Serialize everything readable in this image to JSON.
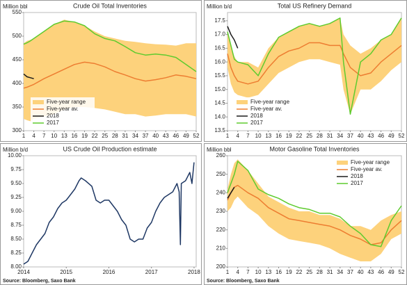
{
  "chart_data": [
    {
      "type": "line",
      "title": "Crude Oil Total Inventories",
      "ylabel": "Million bbl",
      "x": [
        1,
        2,
        3,
        4,
        7,
        10,
        13,
        16,
        19,
        22,
        25,
        28,
        31,
        34,
        37,
        40,
        43,
        46,
        49,
        52
      ],
      "xlim": [
        1,
        52
      ],
      "xticks": [
        1,
        4,
        7,
        10,
        13,
        16,
        19,
        22,
        25,
        28,
        31,
        34,
        37,
        40,
        43,
        46,
        49,
        52
      ],
      "ylim": [
        300,
        550
      ],
      "yticks": [
        300,
        350,
        400,
        450,
        500,
        550
      ],
      "grid": false,
      "legend": "lower-left",
      "series": [
        {
          "name": "Five-year range",
          "color": "#fdd27c",
          "high": [
            485,
            490,
            492,
            495,
            510,
            525,
            535,
            530,
            522,
            510,
            500,
            495,
            490,
            488,
            485,
            483,
            482,
            480,
            485,
            485
          ],
          "low": [
            325,
            322,
            320,
            325,
            330,
            335,
            345,
            350,
            350,
            348,
            345,
            340,
            335,
            335,
            330,
            332,
            335,
            335,
            335,
            330
          ]
        },
        {
          "name": "Five-year av.",
          "color": "#ed7d31",
          "values": [
            390,
            392,
            395,
            398,
            410,
            420,
            430,
            440,
            445,
            442,
            435,
            425,
            418,
            410,
            405,
            408,
            412,
            418,
            415,
            410
          ]
        },
        {
          "name": "2018",
          "color": "#1a1a1a",
          "values": [
            420,
            414,
            412,
            410,
            null,
            null,
            null,
            null,
            null,
            null,
            null,
            null,
            null,
            null,
            null,
            null,
            null,
            null,
            null,
            null
          ]
        },
        {
          "name": "2017",
          "color": "#5ecb2e",
          "values": [
            483,
            486,
            490,
            495,
            510,
            525,
            532,
            530,
            522,
            505,
            495,
            490,
            478,
            465,
            460,
            462,
            460,
            455,
            440,
            425
          ]
        }
      ]
    },
    {
      "type": "line",
      "title": "Total US Refinery Demand",
      "ylabel": "Million b/d",
      "x": [
        1,
        2,
        3,
        4,
        7,
        10,
        13,
        16,
        19,
        22,
        25,
        28,
        31,
        34,
        35,
        37,
        40,
        43,
        46,
        49,
        52
      ],
      "xlim": [
        1,
        52
      ],
      "xticks": [
        1,
        4,
        7,
        10,
        13,
        16,
        19,
        22,
        25,
        28,
        31,
        34,
        37,
        40,
        43,
        46,
        49,
        52
      ],
      "ylim": [
        13.5,
        17.8
      ],
      "yticks": [
        13.5,
        {
          "value": 14,
          "label": "14.0"
        },
        14.5,
        {
          "value": 15,
          "label": "15.0"
        },
        15.5,
        {
          "value": 16,
          "label": "16.0"
        },
        16.5,
        {
          "value": 17,
          "label": "17.0"
        },
        17.5
      ],
      "grid": false,
      "legend": "lower-left",
      "series": [
        {
          "name": "Five-year range",
          "color": "#fdd27c",
          "high": [
            17.1,
            16.6,
            16.2,
            16.0,
            16.0,
            15.8,
            16.5,
            16.9,
            17.1,
            17.3,
            17.4,
            17.3,
            17.4,
            17.6,
            17.0,
            16.6,
            16.3,
            16.5,
            16.8,
            17.0,
            17.6
          ],
          "low": [
            15.8,
            15.2,
            14.9,
            14.8,
            14.7,
            14.8,
            15.2,
            15.6,
            15.8,
            16.0,
            16.1,
            16.1,
            16.0,
            15.9,
            15.0,
            14.1,
            15.0,
            15.0,
            15.3,
            15.7,
            16.0
          ]
        },
        {
          "name": "Five-year av.",
          "color": "#ed7d31",
          "values": [
            16.3,
            15.8,
            15.5,
            15.3,
            15.2,
            15.3,
            15.8,
            16.2,
            16.4,
            16.5,
            16.7,
            16.7,
            16.6,
            16.6,
            16.3,
            15.8,
            15.5,
            15.6,
            16.0,
            16.3,
            16.6
          ]
        },
        {
          "name": "2018",
          "color": "#1a1a1a",
          "values": [
            17.3,
            17.0,
            16.8,
            16.5,
            null,
            null,
            null,
            null,
            null,
            null,
            null,
            null,
            null,
            null,
            null,
            null,
            null,
            null,
            null,
            null,
            null
          ]
        },
        {
          "name": "2017",
          "color": "#5ecb2e",
          "values": [
            17.1,
            16.6,
            16.1,
            16.0,
            15.9,
            15.5,
            16.3,
            16.9,
            17.1,
            17.3,
            17.4,
            17.3,
            17.4,
            17.6,
            16.0,
            14.1,
            16.0,
            16.3,
            16.8,
            17.0,
            17.6
          ]
        }
      ]
    },
    {
      "type": "line",
      "title": "US Crude Oil Production  estimate",
      "ylabel": "Million b/d",
      "source": "Source: Bloomberg, Saxo Bank",
      "x": [
        2014.0,
        2014.1,
        2014.2,
        2014.3,
        2014.4,
        2014.5,
        2014.6,
        2014.7,
        2014.8,
        2014.9,
        2015.0,
        2015.1,
        2015.2,
        2015.3,
        2015.35,
        2015.45,
        2015.6,
        2015.7,
        2015.8,
        2015.9,
        2016.0,
        2016.1,
        2016.2,
        2016.3,
        2016.4,
        2016.5,
        2016.6,
        2016.7,
        2016.8,
        2016.9,
        2017.0,
        2017.1,
        2017.2,
        2017.3,
        2017.4,
        2017.5,
        2017.6,
        2017.65,
        2017.68,
        2017.7,
        2017.8,
        2017.9,
        2017.95,
        2018.0
      ],
      "xlim": [
        2014,
        2018.05
      ],
      "xticks": [
        2014,
        2015,
        2016,
        2017,
        2018
      ],
      "ylim": [
        8.0,
        10.0
      ],
      "yticks": [
        {
          "value": 8,
          "label": "8.00"
        },
        {
          "value": 8.25,
          "label": "8.25"
        },
        {
          "value": 8.5,
          "label": "8.50"
        },
        {
          "value": 8.75,
          "label": "8.75"
        },
        {
          "value": 9,
          "label": "9.00"
        },
        {
          "value": 9.25,
          "label": "9.25"
        },
        {
          "value": 9.5,
          "label": "9.50"
        },
        {
          "value": 9.75,
          "label": "9.75"
        },
        {
          "value": 10,
          "label": "10.00"
        }
      ],
      "grid": false,
      "series": [
        {
          "color": "#1f3864",
          "values": [
            8.05,
            8.1,
            8.25,
            8.4,
            8.5,
            8.6,
            8.8,
            8.9,
            9.05,
            9.15,
            9.2,
            9.3,
            9.4,
            9.55,
            9.6,
            9.55,
            9.45,
            9.2,
            9.15,
            9.2,
            9.2,
            9.1,
            9.0,
            8.85,
            8.75,
            8.5,
            8.45,
            8.5,
            8.5,
            8.7,
            8.8,
            9.0,
            9.15,
            9.25,
            9.3,
            9.35,
            9.5,
            9.35,
            8.4,
            9.5,
            9.55,
            9.7,
            9.5,
            9.88
          ]
        }
      ]
    },
    {
      "type": "line",
      "title": "Motor Gasoline Total Inventories",
      "ylabel": "Million bbl",
      "source": "Source: Bloomberg, Saxo Bank",
      "x": [
        1,
        2,
        3,
        4,
        7,
        10,
        13,
        16,
        19,
        22,
        25,
        28,
        31,
        34,
        37,
        40,
        43,
        46,
        49,
        52
      ],
      "xlim": [
        1,
        52
      ],
      "xticks": [
        1,
        4,
        7,
        10,
        13,
        16,
        19,
        22,
        25,
        28,
        31,
        34,
        37,
        40,
        43,
        46,
        49,
        52
      ],
      "ylim": [
        200,
        260
      ],
      "yticks": [
        200,
        210,
        220,
        230,
        240,
        250,
        260
      ],
      "grid": false,
      "legend": "upper-right",
      "series": [
        {
          "name": "Five-year range",
          "color": "#fdd27c",
          "high": [
            242,
            250,
            256,
            258,
            252,
            245,
            238,
            235,
            232,
            230,
            230,
            228,
            228,
            226,
            222,
            222,
            220,
            225,
            228,
            230
          ],
          "low": [
            230,
            232,
            236,
            238,
            232,
            228,
            222,
            218,
            215,
            214,
            213,
            212,
            210,
            207,
            205,
            203,
            203,
            207,
            215,
            218
          ]
        },
        {
          "name": "Five-year av.",
          "color": "#ed7d31",
          "values": [
            236,
            240,
            243,
            244,
            240,
            237,
            232,
            229,
            226,
            225,
            224,
            223,
            222,
            220,
            217,
            215,
            212,
            213,
            220,
            225
          ]
        },
        {
          "name": "2018",
          "color": "#1a1a1a",
          "values": [
            237,
            240,
            243,
            null,
            null,
            null,
            null,
            null,
            null,
            null,
            null,
            null,
            null,
            null,
            null,
            null,
            null,
            null,
            null,
            null
          ]
        },
        {
          "name": "2017",
          "color": "#5ecb2e",
          "values": [
            240,
            245,
            250,
            257,
            252,
            242,
            239,
            237,
            234,
            232,
            231,
            229,
            229,
            227,
            222,
            218,
            212,
            211,
            225,
            233
          ]
        }
      ]
    }
  ]
}
